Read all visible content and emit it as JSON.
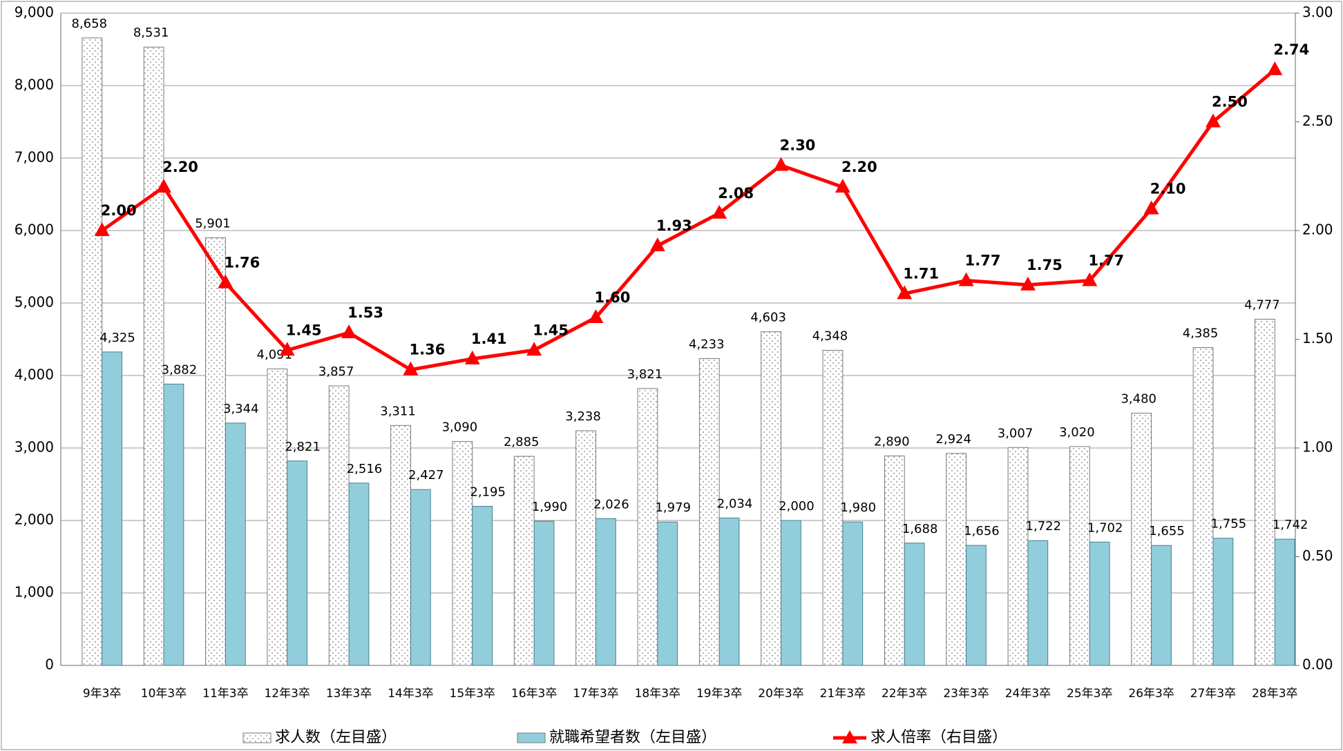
{
  "chart_data": {
    "type": "bar-line",
    "categories": [
      "9年3卒",
      "10年3卒",
      "11年3卒",
      "12年3卒",
      "13年3卒",
      "14年3卒",
      "15年3卒",
      "16年3卒",
      "17年3卒",
      "18年3卒",
      "19年3卒",
      "20年3卒",
      "21年3卒",
      "22年3卒",
      "23年3卒",
      "24年3卒",
      "25年3卒",
      "26年3卒",
      "27年3卒",
      "28年3卒"
    ],
    "series": [
      {
        "name": "求人数（左目盛）",
        "type": "bar",
        "color": "#ffffff",
        "values": [
          8658,
          8531,
          5901,
          4091,
          3857,
          3311,
          3090,
          2885,
          3238,
          3821,
          4233,
          4603,
          4348,
          2890,
          2924,
          3007,
          3020,
          3480,
          4385,
          4777
        ],
        "value_labels": [
          "8,658",
          "8,531",
          "5,901",
          "4,091",
          "3,857",
          "3,311",
          "3,090",
          "2,885",
          "3,238",
          "3,821",
          "4,233",
          "4,603",
          "4,348",
          "2,890",
          "2,924",
          "3,007",
          "3,020",
          "3,480",
          "4,385",
          "4,777"
        ]
      },
      {
        "name": "就職希望者数（左目盛）",
        "type": "bar",
        "color": "#92cddc",
        "values": [
          4325,
          3882,
          3344,
          2821,
          2516,
          2427,
          2195,
          1990,
          2026,
          1979,
          2034,
          2000,
          1980,
          1688,
          1656,
          1722,
          1702,
          1655,
          1755,
          1742
        ],
        "value_labels": [
          "4,325",
          "3,882",
          "3,344",
          "2,821",
          "2,516",
          "2,427",
          "2,195",
          "1,990",
          "2,026",
          "1,979",
          "2,034",
          "2,000",
          "1,980",
          "1,688",
          "1,656",
          "1,722",
          "1,702",
          "1,655",
          "1,755",
          "1,742"
        ]
      },
      {
        "name": "求人倍率（右目盛）",
        "type": "line",
        "axis": "y2",
        "color": "#ff0000",
        "values": [
          2.0,
          2.2,
          1.76,
          1.45,
          1.53,
          1.36,
          1.41,
          1.45,
          1.6,
          1.93,
          2.08,
          2.3,
          2.2,
          1.71,
          1.77,
          1.75,
          1.77,
          2.1,
          2.5,
          2.74
        ],
        "value_labels": [
          "2.00",
          "2.20",
          "1.76",
          "1.45",
          "1.53",
          "1.36",
          "1.41",
          "1.45",
          "1.60",
          "1.93",
          "2.08",
          "2.30",
          "2.20",
          "1.71",
          "1.77",
          "1.75",
          "1.77",
          "2.10",
          "2.50",
          "2.74"
        ]
      }
    ],
    "ylim": [
      0,
      9000
    ],
    "yticks": [
      0,
      {
        "value": 1000,
        "label": "1,000"
      },
      {
        "value": 2000,
        "label": "2,000"
      },
      {
        "value": 3000,
        "label": "3,000"
      },
      {
        "value": 4000,
        "label": "4,000"
      },
      {
        "value": 5000,
        "label": "5,000"
      },
      {
        "value": 6000,
        "label": "6,000"
      },
      {
        "value": 7000,
        "label": "7,000"
      },
      {
        "value": 8000,
        "label": "8,000"
      },
      {
        "value": 9000,
        "label": "9,000"
      }
    ],
    "y2lim": [
      0,
      3
    ],
    "y2ticks": [
      {
        "value": 0,
        "label": "0.00"
      },
      {
        "value": 0.5,
        "label": "0.50"
      },
      {
        "value": 1,
        "label": "1.00"
      },
      {
        "value": 1.5,
        "label": "1.50"
      },
      {
        "value": 2,
        "label": "2.00"
      },
      {
        "value": 2.5,
        "label": "2.50"
      },
      {
        "value": 3,
        "label": "3.00"
      }
    ],
    "grid": true
  }
}
